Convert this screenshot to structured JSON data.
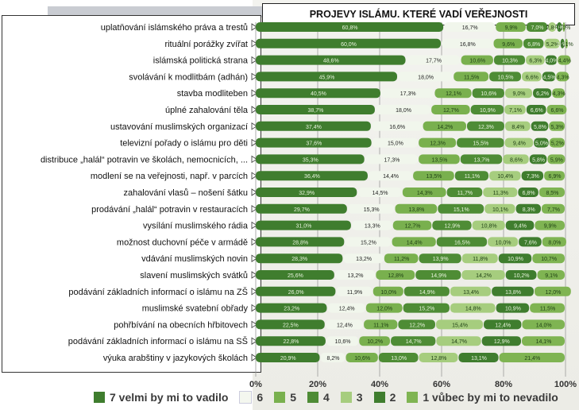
{
  "chart_data": {
    "type": "bar",
    "stacked": true,
    "orientation": "horizontal",
    "title": "PROJEVY ISLÁMU. KTERÉ VADÍ VEŘEJNOSTI",
    "xlim": [
      0,
      100
    ],
    "x_ticks": [
      "0%",
      "20%",
      "40%",
      "60%",
      "80%",
      "100%"
    ],
    "categories": [
      "uplatňování islámského práva a trestů",
      "rituální porážky zvířat",
      "islámská politická strana",
      "svolávání k modlitbám (adhán)",
      "stavba modliteben",
      "úplné zahalování těla",
      "ustavování muslimských organizací",
      "televizní pořady o islámu pro děti",
      "distribuce „halál“ potravin ve školách, nemocnicích, ...",
      "modlení se na veřejnosti, např. v parcích",
      "zahalování vlasů – nošení šátku",
      "prodávání „halál“ potravin v restauracích",
      "vysílání muslimského rádia",
      "možnost duchovní péče v armádě",
      "vdávání muslimských novin",
      "slavení muslimských svátků",
      "podávání základních informací o islámu na ZŠ",
      "muslimské svatební obřady",
      "pohřbívání na obecních hřbitovech",
      "podávání základních informací o islámu na SŠ",
      "výuka arabštiny v jazykových školách"
    ],
    "series": [
      {
        "name": "7 velmi by mi to vadilo",
        "color": "#3f7d2e",
        "values": [
          60.8,
          60.0,
          48.6,
          45.9,
          40.5,
          38.7,
          37.4,
          37.6,
          35.3,
          36.4,
          32.9,
          29.7,
          31.0,
          28.8,
          28.3,
          25.6,
          26.0,
          23.2,
          22.5,
          22.8,
          20.9
        ]
      },
      {
        "name": "6",
        "color": "#ffffff",
        "values": [
          16.7,
          16.8,
          17.7,
          18.0,
          17.3,
          18.0,
          16.6,
          15.0,
          17.3,
          14.4,
          14.5,
          15.3,
          13.3,
          15.2,
          13.2,
          13.2,
          11.9,
          12.4,
          12.4,
          10.6,
          8.2
        ]
      },
      {
        "name": "5",
        "color": "#79b04e",
        "values": [
          9.9,
          9.6,
          10.6,
          11.5,
          12.1,
          12.7,
          14.2,
          12.3,
          13.5,
          13.5,
          14.3,
          13.8,
          12.7,
          14.4,
          11.2,
          12.8,
          10.0,
          12.0,
          11.1,
          10.2,
          10.6
        ]
      },
      {
        "name": "4",
        "color": "#4e8c35",
        "values": [
          7.0,
          6.8,
          10.3,
          10.5,
          10.6,
          10.9,
          12.3,
          15.5,
          13.7,
          11.1,
          11.7,
          15.1,
          12.9,
          16.5,
          13.9,
          14.9,
          14.9,
          15.2,
          12.2,
          14.7,
          13.0
        ]
      },
      {
        "name": "3",
        "color": "#a6cd7e",
        "values": [
          2.8,
          5.2,
          6.3,
          6.6,
          9.0,
          7.1,
          8.4,
          9.4,
          8.6,
          10.4,
          11.3,
          10.1,
          10.8,
          10.0,
          11.8,
          14.2,
          13.4,
          14.8,
          15.4,
          14.7,
          12.8
        ]
      },
      {
        "name": "2",
        "color": "#3f7d2e",
        "values": [
          1.9,
          1.5,
          4.0,
          4.5,
          6.2,
          6.6,
          5.8,
          5.0,
          5.8,
          7.3,
          6.8,
          8.3,
          9.4,
          7.6,
          10.9,
          10.2,
          13.8,
          10.9,
          12.4,
          12.9,
          13.1
        ]
      },
      {
        "name": "1 vůbec by mi to nevadilo",
        "color": "#7fb452",
        "values": [
          1.0,
          1.1,
          4.4,
          4.3,
          4.3,
          6.6,
          5.3,
          5.2,
          5.9,
          6.9,
          8.5,
          7.7,
          9.9,
          8.0,
          10.7,
          9.1,
          12.0,
          11.5,
          14.0,
          14.1,
          21.4
        ]
      }
    ],
    "legend": {
      "position": "bottom"
    },
    "grid": true
  }
}
